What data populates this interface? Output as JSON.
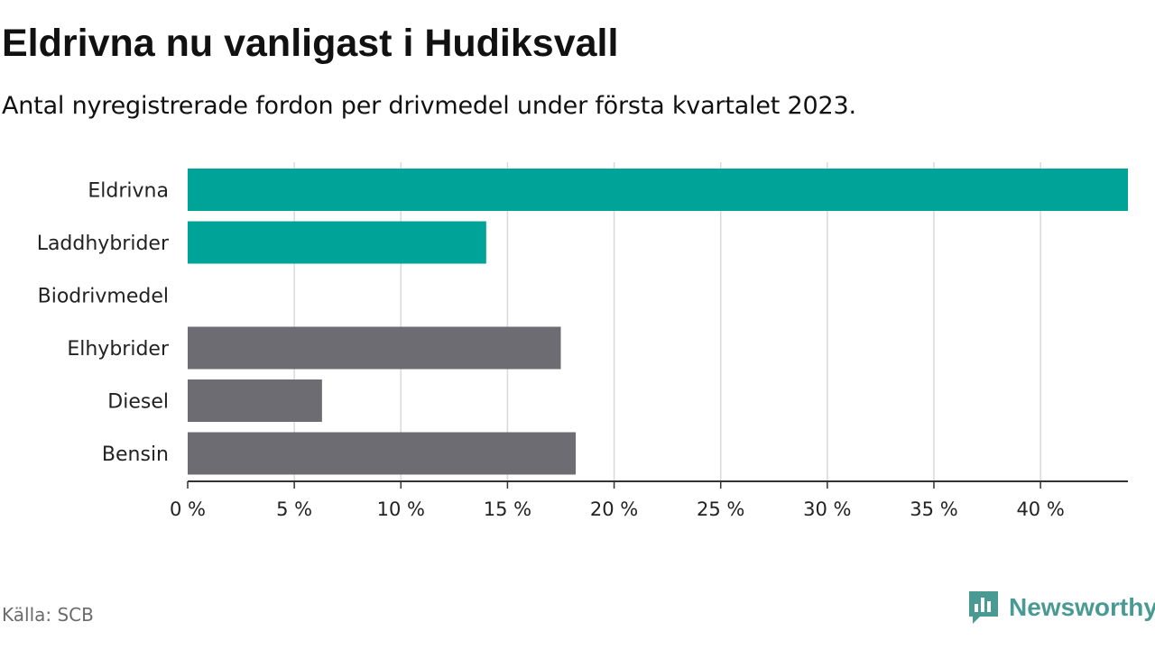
{
  "title": "Eldrivna nu vanligast i Hudiksvall",
  "subtitle": "Antal nyregistrerade fordon per drivmedel under första kvartalet 2023.",
  "source": "Källa: SCB",
  "brand": {
    "name": "Newsworthy",
    "icon": "newsworthy-logo-icon",
    "color": "#4a9a94"
  },
  "colors": {
    "highlight": "#00a398",
    "default": "#6d6c73",
    "grid": "#d9d9d9",
    "axis": "#333333"
  },
  "chart_data": {
    "type": "bar",
    "orientation": "horizontal",
    "categories": [
      "Eldrivna",
      "Laddhybrider",
      "Biodrivmedel",
      "Elhybrider",
      "Diesel",
      "Bensin"
    ],
    "values": [
      44.1,
      14.0,
      0,
      17.5,
      6.3,
      18.2
    ],
    "highlight": [
      true,
      true,
      true,
      false,
      false,
      false
    ],
    "unit": "%",
    "xlim": [
      0,
      44.1
    ],
    "xticks": [
      0,
      5,
      10,
      15,
      20,
      25,
      30,
      35,
      40
    ],
    "xtick_labels": [
      "0 %",
      "5 %",
      "10 %",
      "15 %",
      "20 %",
      "25 %",
      "30 %",
      "35 %",
      "40 %"
    ],
    "grid": true
  }
}
